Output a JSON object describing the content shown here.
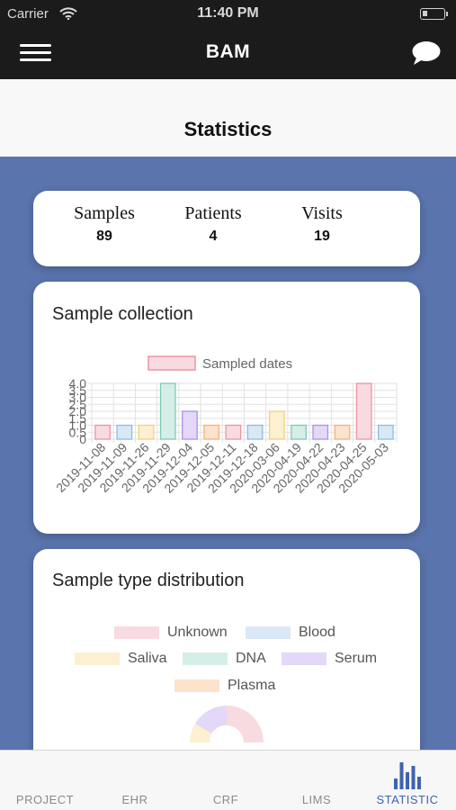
{
  "status_bar": {
    "carrier": "Carrier",
    "time": "11:40 PM"
  },
  "nav": {
    "title": "BAM",
    "menu_icon": "hamburger-menu-icon",
    "chat_icon": "chat-bubble-icon"
  },
  "page": {
    "title": "Statistics"
  },
  "stats": [
    {
      "label": "Samples",
      "value": "89"
    },
    {
      "label": "Patients",
      "value": "4"
    },
    {
      "label": "Visits",
      "value": "19"
    }
  ],
  "sample_collection": {
    "title": "Sample collection",
    "chart_data": {
      "type": "bar",
      "legend": {
        "label": "Sampled dates",
        "position": "top"
      },
      "categories": [
        "2019-11-08",
        "2019-11-09",
        "2019-11-26",
        "2019-11-29",
        "2019-12-04",
        "2019-12-05",
        "2019-12-11",
        "2019-12-18",
        "2020-03-06",
        "2020-04-19",
        "2020-04-22",
        "2020-04-23",
        "2020-04-25",
        "2020-05-03"
      ],
      "values": [
        1,
        1,
        1,
        4,
        2,
        1,
        1,
        1,
        2,
        1,
        1,
        1,
        4,
        1
      ],
      "yticks": [
        "0",
        "0.5",
        "1.0",
        "1.5",
        "2.0",
        "2.5",
        "3.0",
        "3.5",
        "4.0"
      ],
      "ylim": [
        0,
        4
      ],
      "grid": true,
      "colors": {
        "fills": [
          "#f7dbe0",
          "#d9e8f5",
          "#fdf0d0",
          "#d5eee8",
          "#e3d8f7",
          "#fde2cc"
        ],
        "strokes": [
          "#ee93a7",
          "#8cbce3",
          "#f4cf7a",
          "#7ccab8",
          "#ad91ec",
          "#f6b07c"
        ]
      }
    }
  },
  "sample_distribution": {
    "title": "Sample type distribution",
    "legend": [
      {
        "label": "Unknown",
        "color": "#f7dbe0"
      },
      {
        "label": "Blood",
        "color": "#d9e8f5"
      },
      {
        "label": "Saliva",
        "color": "#fdf0d0"
      },
      {
        "label": "DNA",
        "color": "#d5eee8"
      },
      {
        "label": "Serum",
        "color": "#e3d8f7"
      },
      {
        "label": "Plasma",
        "color": "#fde2cc"
      }
    ]
  },
  "tabs": [
    {
      "label": "PROJECT",
      "active": false
    },
    {
      "label": "EHR",
      "active": false
    },
    {
      "label": "CRF",
      "active": false
    },
    {
      "label": "LIMS",
      "active": false
    },
    {
      "label": "STATISTIC",
      "active": true,
      "icon": "bar-chart-icon"
    }
  ]
}
